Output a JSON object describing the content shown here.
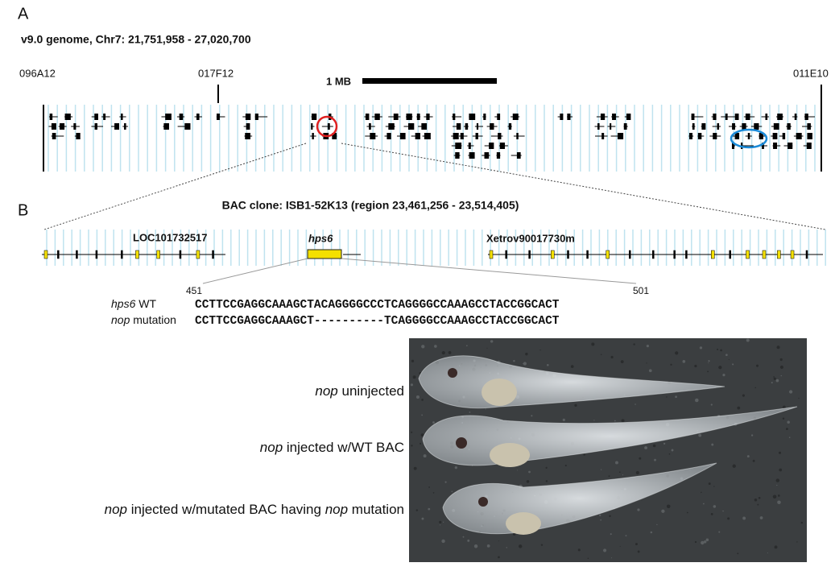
{
  "panel_a": {
    "label": "A",
    "title": "v9.0 genome, Chr7: 21,751,958 - 27,020,700",
    "markers": [
      "096A12",
      "017F12",
      "011E10"
    ],
    "scale": "1 MB"
  },
  "panel_b": {
    "label": "B",
    "title": "BAC clone: ISB1-52K13 (region 23,461,256 - 23,514,405)",
    "genes": [
      "LOC101732517",
      "hps6",
      "Xetrov90017730m"
    ],
    "range": [
      "451",
      "501"
    ],
    "sequences": [
      {
        "label": [
          {
            "italic": "hps6"
          },
          {
            "text": " WT"
          }
        ],
        "seq": "CCTTCCGAGGCAAAGCTACAGGGGCCCTCAGGGGCCAAAGCCTACCGGCACT"
      },
      {
        "label": [
          {
            "italic": "nop"
          },
          {
            "text": " mutation"
          }
        ],
        "seq": "CCTTCCGAGGCAAAGCT----------TCAGGGGCCAAAGCCTACCGGCACT"
      }
    ],
    "conditions": [
      [
        {
          "italic": "nop"
        },
        {
          "text": " uninjected"
        }
      ],
      [
        {
          "italic": "nop"
        },
        {
          "text": " injected w/WT BAC"
        }
      ],
      [
        {
          "italic": "nop"
        },
        {
          "text": " injected w/mutated BAC having "
        },
        {
          "italic": "nop"
        },
        {
          "text": " mutation"
        }
      ]
    ]
  }
}
